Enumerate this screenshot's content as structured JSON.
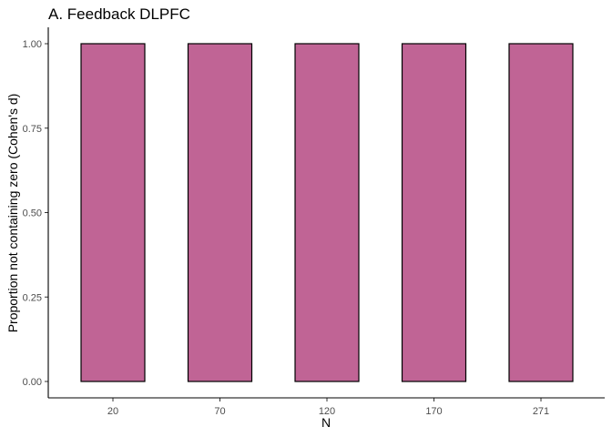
{
  "chart_data": {
    "type": "bar",
    "title": "A. Feedback DLPFC",
    "xlabel": "N",
    "ylabel": "Proportion not containing zero (Cohen's d)",
    "categories": [
      "20",
      "70",
      "120",
      "170",
      "271"
    ],
    "values": [
      1.0,
      1.0,
      1.0,
      1.0,
      1.0
    ],
    "ylim": [
      0,
      1
    ],
    "yticks": [
      "0.00",
      "0.25",
      "0.50",
      "0.75",
      "1.00"
    ],
    "grid": false,
    "legend": "none",
    "bar_color": "#c06495",
    "bar_edge_color": "#000000"
  }
}
